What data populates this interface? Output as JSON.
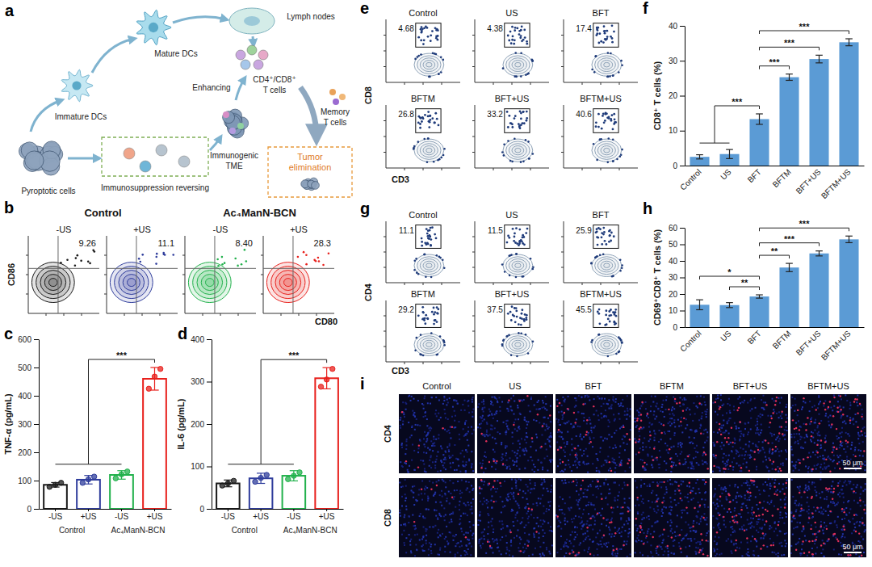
{
  "chart_data": [
    {
      "type": "diagram",
      "panel": "a",
      "nodes": [
        {
          "label": [
            "Immature DCs"
          ]
        },
        {
          "label": [
            "Mature DCs"
          ]
        },
        {
          "label": [
            "Lymph nodes"
          ]
        },
        {
          "label": [
            "CD4⁺/CD8⁺",
            "T cells"
          ]
        },
        {
          "label": [
            "Enhancing"
          ]
        },
        {
          "label": [
            "Memory",
            "T cells"
          ]
        },
        {
          "label": [
            "Pyroptotic cells"
          ]
        },
        {
          "label": [
            "Immunosuppression reversing"
          ]
        },
        {
          "label": [
            "Immunogenic",
            "TME"
          ]
        },
        {
          "label": [
            "Tumor",
            "elimination"
          ]
        }
      ]
    },
    {
      "type": "flow",
      "panel": "b",
      "group_labels": [
        "Control",
        "Ac₄ManN-BCN"
      ],
      "group_of": [
        0,
        0,
        1,
        1
      ],
      "categories": [
        "-US",
        "+US",
        "-US",
        "+US"
      ],
      "values": [
        9.26,
        11.1,
        8.4,
        28.3
      ],
      "value_labels": [
        "9.26",
        "11.1",
        "8.40",
        "28.3"
      ],
      "x_label": "CD80",
      "y_label": "CD86",
      "colors": [
        "#1a1a1a",
        "#2f3d9c",
        "#22b14c",
        "#e8201c"
      ]
    },
    {
      "type": "bar",
      "panel": "c",
      "categories": [
        "-US",
        "+US",
        "-US",
        "+US"
      ],
      "group_labels": [
        "Control",
        "Ac₄ManN-BCN"
      ],
      "group_of": [
        0,
        0,
        1,
        1
      ],
      "values": [
        85,
        103,
        120,
        460
      ],
      "errors": [
        8,
        15,
        15,
        40
      ],
      "points": [
        [
          78,
          85,
          92
        ],
        [
          92,
          104,
          114
        ],
        [
          108,
          122,
          132
        ],
        [
          425,
          468,
          495
        ]
      ],
      "colors": [
        "#1a1a1a",
        "#2f3d9c",
        "#22b14c",
        "#e8201c"
      ],
      "y_label": "TNF-α (pg/mL)",
      "ylim": [
        0,
        600
      ],
      "yticks": [
        0,
        100,
        200,
        300,
        400,
        500,
        600
      ],
      "significance": [
        {
          "from": [
            0,
            1,
            2
          ],
          "to": 3,
          "label": "***"
        }
      ]
    },
    {
      "type": "bar",
      "panel": "d",
      "categories": [
        "-US",
        "+US",
        "-US",
        "+US"
      ],
      "group_labels": [
        "Control",
        "Ac₄ManN-BCN"
      ],
      "group_of": [
        0,
        0,
        1,
        1
      ],
      "values": [
        60,
        72,
        78,
        308
      ],
      "errors": [
        8,
        12,
        12,
        25
      ],
      "points": [
        [
          55,
          60,
          66
        ],
        [
          64,
          73,
          80
        ],
        [
          70,
          78,
          86
        ],
        [
          288,
          305,
          330
        ]
      ],
      "colors": [
        "#1a1a1a",
        "#2f3d9c",
        "#22b14c",
        "#e8201c"
      ],
      "y_label": "IL-6 (pg/mL)",
      "ylim": [
        0,
        400
      ],
      "yticks": [
        0,
        100,
        200,
        300,
        400
      ],
      "significance": [
        {
          "from": [
            0,
            1,
            2
          ],
          "to": 3,
          "label": "***"
        }
      ]
    },
    {
      "type": "flow",
      "panel": "e",
      "categories": [
        "Control",
        "US",
        "BFT",
        "BFTM",
        "BFT+US",
        "BFTM+US"
      ],
      "values": [
        4.68,
        4.38,
        17.4,
        26.8,
        33.2,
        40.6
      ],
      "x_label": "CD3",
      "y_label": "CD8"
    },
    {
      "type": "bar",
      "panel": "f",
      "categories": [
        "Control",
        "US",
        "BFT",
        "BFTM",
        "BFT+US",
        "BFTM+US"
      ],
      "values": [
        2.5,
        3.3,
        13.3,
        25.3,
        30.5,
        35.3
      ],
      "errors": [
        0.6,
        1.3,
        1.5,
        0.9,
        1.1,
        1.0
      ],
      "color": "#5b9bd5",
      "y_label": "CD8⁺ T cells (%)",
      "ylim": [
        0,
        40
      ],
      "yticks": [
        0,
        10,
        20,
        30,
        40
      ],
      "significance": [
        {
          "from": [
            0,
            1
          ],
          "to": 2,
          "label": "***"
        },
        {
          "from": [
            2
          ],
          "to": 3,
          "label": "***"
        },
        {
          "from": [
            2
          ],
          "to": 4,
          "label": "***"
        },
        {
          "from": [
            2
          ],
          "to": 5,
          "label": "***"
        }
      ]
    },
    {
      "type": "flow",
      "panel": "g",
      "categories": [
        "Control",
        "US",
        "BFT",
        "BFTM",
        "BFT+US",
        "BFTM+US"
      ],
      "values": [
        11.1,
        11.5,
        25.9,
        29.2,
        37.5,
        45.5
      ],
      "x_label": "CD3",
      "y_label": "CD4"
    },
    {
      "type": "bar",
      "panel": "h",
      "categories": [
        "Control",
        "US",
        "BFT",
        "BFTM",
        "BFT+US",
        "BFTM+US"
      ],
      "values": [
        13.5,
        13.3,
        18.5,
        36,
        44.5,
        53
      ],
      "errors": [
        3,
        1.5,
        1,
        2.5,
        1.5,
        2
      ],
      "color": "#5b9bd5",
      "y_label": "CD69⁺CD8⁺ T cells (%)",
      "ylim": [
        0,
        60
      ],
      "yticks": [
        0,
        10,
        20,
        30,
        40,
        50,
        60
      ],
      "significance": [
        {
          "from": [
            1
          ],
          "to": 2,
          "label": "**"
        },
        {
          "from": [
            0
          ],
          "to": 2,
          "label": "*"
        },
        {
          "from": [
            2
          ],
          "to": 3,
          "label": "**"
        },
        {
          "from": [
            2
          ],
          "to": 4,
          "label": "***"
        },
        {
          "from": [
            2
          ],
          "to": 5,
          "label": "***"
        }
      ]
    },
    {
      "type": "image_grid",
      "panel": "i",
      "columns": [
        "Control",
        "US",
        "BFT",
        "BFTM",
        "BFT+US",
        "BFTM+US"
      ],
      "rows": [
        "CD4",
        "CD8"
      ],
      "scale_bars": [
        "50 μm",
        "50 μm"
      ]
    }
  ]
}
